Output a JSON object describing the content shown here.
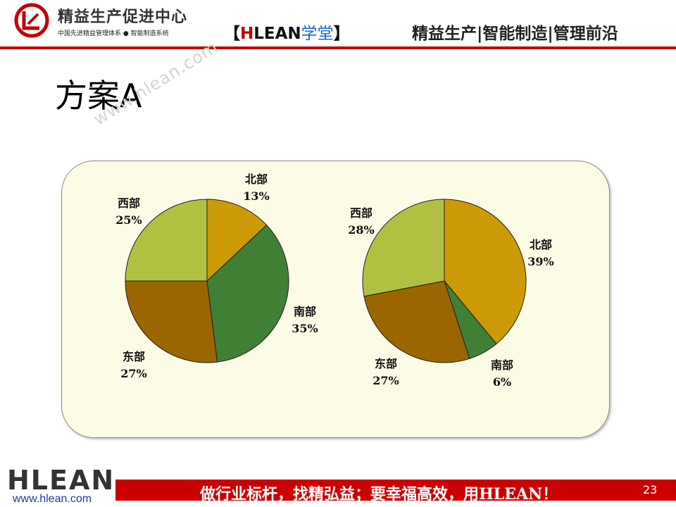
{
  "header": {
    "logo_title": "精益生产促进中心",
    "logo_subtitle": "中国先进精益管理体系 ● 智能制造系统",
    "brand_open": "【",
    "brand_h": "H",
    "brand_lean": "LEAN",
    "brand_cn": "学堂",
    "brand_close": "】",
    "tagline": "精益生产|智能制造|管理前沿"
  },
  "slide": {
    "title": "方案A",
    "watermark": "www.hlean.com"
  },
  "chart_data": [
    {
      "type": "pie",
      "slices": [
        {
          "label": "北部",
          "value": 13,
          "pct_label": "13%",
          "color": "#cc9a06"
        },
        {
          "label": "南部",
          "value": 35,
          "pct_label": "35%",
          "color": "#3f8035"
        },
        {
          "label": "东部",
          "value": 27,
          "pct_label": "27%",
          "color": "#996600"
        },
        {
          "label": "西部",
          "value": 25,
          "pct_label": "25%",
          "color": "#b2c042"
        }
      ]
    },
    {
      "type": "pie",
      "slices": [
        {
          "label": "北部",
          "value": 39,
          "pct_label": "39%",
          "color": "#cc9a06"
        },
        {
          "label": "南部",
          "value": 6,
          "pct_label": "6%",
          "color": "#3f8035"
        },
        {
          "label": "东部",
          "value": 27,
          "pct_label": "27%",
          "color": "#996600"
        },
        {
          "label": "西部",
          "value": 28,
          "pct_label": "28%",
          "color": "#b2c042"
        }
      ]
    }
  ],
  "footer": {
    "slogan": "做行业标杆，找精弘益；要幸福高效，用HLEAN！",
    "page_number": "23",
    "logo_text": "HLEAN",
    "url": "www.hlean.com"
  }
}
